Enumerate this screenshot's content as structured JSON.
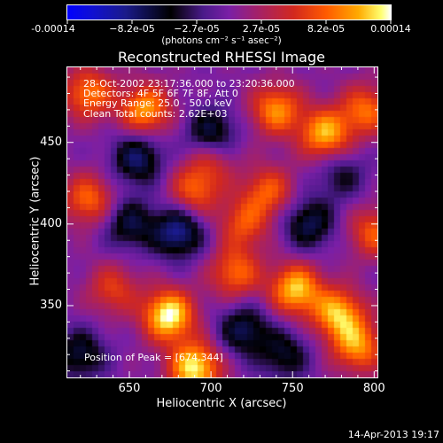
{
  "colorbar": {
    "tick_labels": [
      "-0.00014",
      "−8.2e-05",
      "−2.7e-05",
      "2.7e-05",
      "8.2e-05",
      "0.00014"
    ],
    "unit_label": "(photons cm⁻² s⁻¹ asec⁻²)",
    "range": [
      -0.00014,
      0.00014
    ]
  },
  "chart_data": {
    "type": "heatmap",
    "title": "Reconstructed RHESSI Image",
    "xlabel": "Heliocentric X (arcsec)",
    "ylabel": "Heliocentric Y (arcsec)",
    "xlim": [
      612,
      802
    ],
    "ylim": [
      306,
      496
    ],
    "xticks": [
      650,
      700,
      750,
      800
    ],
    "yticks": [
      350,
      400,
      450
    ],
    "x_tick_labels": [
      "650",
      "700",
      "750",
      "800"
    ],
    "y_tick_labels": [
      "350",
      "400",
      "450"
    ],
    "annotations": [
      "28-Oct-2002 23:17:36.000 to 23:20:36.000",
      "Detectors: 4F 5F 6F 7F 8F, Att 0",
      "Energy Range: 25.0 - 50.0 keV",
      "Clean     Total counts: 2.62E+03"
    ],
    "peak_label": "Position of Peak = [674,344]",
    "peak": [
      674,
      344
    ],
    "blobs": [
      {
        "x": 674,
        "y": 344,
        "v": 1.0
      },
      {
        "x": 690,
        "y": 312,
        "v": 0.95
      },
      {
        "x": 752,
        "y": 360,
        "v": 0.85
      },
      {
        "x": 715,
        "y": 370,
        "v": 0.6
      },
      {
        "x": 778,
        "y": 345,
        "v": 0.8
      },
      {
        "x": 790,
        "y": 325,
        "v": 0.7
      },
      {
        "x": 660,
        "y": 470,
        "v": 0.75
      },
      {
        "x": 625,
        "y": 480,
        "v": 0.65
      },
      {
        "x": 740,
        "y": 470,
        "v": 0.7
      },
      {
        "x": 770,
        "y": 455,
        "v": 0.8
      },
      {
        "x": 795,
        "y": 470,
        "v": 0.6
      },
      {
        "x": 690,
        "y": 420,
        "v": 0.55
      },
      {
        "x": 720,
        "y": 400,
        "v": 0.5
      },
      {
        "x": 625,
        "y": 415,
        "v": 0.6
      },
      {
        "x": 735,
        "y": 420,
        "v": 0.55
      },
      {
        "x": 640,
        "y": 360,
        "v": 0.45
      },
      {
        "x": 800,
        "y": 395,
        "v": 0.55
      },
      {
        "x": 700,
        "y": 440,
        "v": 0.4
      },
      {
        "x": 650,
        "y": 400,
        "v": -0.5
      },
      {
        "x": 700,
        "y": 455,
        "v": -0.6
      },
      {
        "x": 720,
        "y": 335,
        "v": -0.55
      },
      {
        "x": 680,
        "y": 395,
        "v": -0.7
      },
      {
        "x": 655,
        "y": 440,
        "v": -0.6
      },
      {
        "x": 760,
        "y": 400,
        "v": -0.55
      },
      {
        "x": 745,
        "y": 320,
        "v": -0.45
      },
      {
        "x": 620,
        "y": 320,
        "v": -0.5
      },
      {
        "x": 780,
        "y": 430,
        "v": -0.35
      }
    ]
  },
  "footer": {
    "timestamp": "14-Apr-2013 19:17"
  },
  "colors": {
    "axes": "#ffffff",
    "background": "#000000"
  }
}
